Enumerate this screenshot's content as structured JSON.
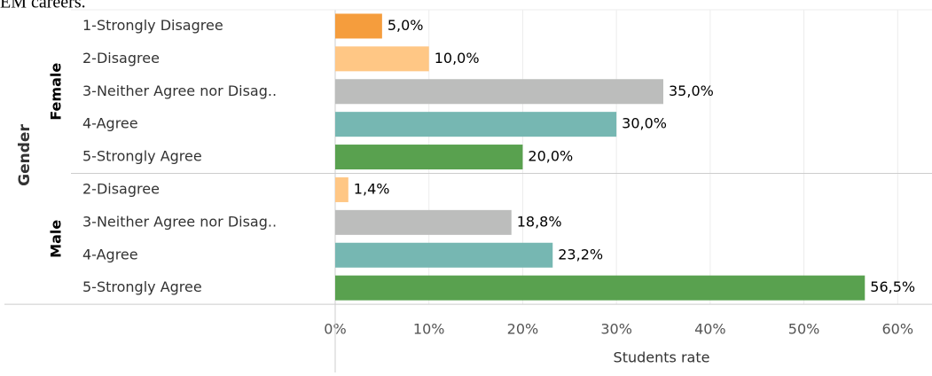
{
  "chart_data": {
    "type": "bar",
    "orientation": "horizontal",
    "title": "EM careers.",
    "y_label": "Gender",
    "x_label": "Students rate",
    "groups": [
      {
        "name": "Female",
        "categories": [
          "1-Strongly Disagree",
          "2-Disagree",
          "3-Neither Agree nor Disag..",
          "4-Agree",
          "5-Strongly Agree"
        ],
        "values": [
          5.0,
          10.0,
          35.0,
          30.0,
          20.0
        ],
        "value_labels": [
          "5,0%",
          "10,0%",
          "35,0%",
          "30,0%",
          "20,0%"
        ],
        "colors": [
          "#f59d3d",
          "#ffc785",
          "#bcbdbc",
          "#76b7b2",
          "#59a14f"
        ]
      },
      {
        "name": "Male",
        "categories": [
          "2-Disagree",
          "3-Neither Agree nor Disag..",
          "4-Agree",
          "5-Strongly Agree"
        ],
        "values": [
          1.4,
          18.8,
          23.2,
          56.5
        ],
        "value_labels": [
          "1,4%",
          "18,8%",
          "23,2%",
          "56,5%"
        ],
        "colors": [
          "#ffc785",
          "#bcbdbc",
          "#76b7b2",
          "#59a14f"
        ]
      }
    ],
    "xlim": [
      0,
      63
    ],
    "xticks": [
      {
        "value": 0,
        "label": "0%"
      },
      {
        "value": 10,
        "label": "10%"
      },
      {
        "value": 20,
        "label": "20%"
      },
      {
        "value": 30,
        "label": "30%"
      },
      {
        "value": 40,
        "label": "40%"
      },
      {
        "value": 50,
        "label": "50%"
      },
      {
        "value": 60,
        "label": "60%"
      }
    ],
    "grid": true
  }
}
